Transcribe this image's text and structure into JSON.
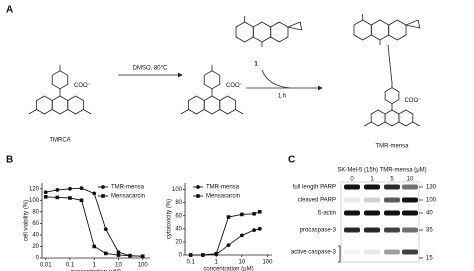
{
  "panel_a": {
    "label": "A",
    "compounds": [
      "TMRCA",
      "1",
      "TMR-mensa"
    ],
    "conditions": [
      "DMSO, 80°C",
      "1 h"
    ],
    "atom_labels": [
      "COO⁻",
      "COO⁻",
      "COO⁻"
    ]
  },
  "panel_b": {
    "label": "B"
  },
  "chart_data": [
    {
      "type": "line",
      "xscale": "log",
      "xlabel": "concentration (μM)",
      "ylabel": "cell viability (%)",
      "x": [
        0.01,
        0.03,
        0.1,
        0.3,
        1,
        3,
        10,
        30,
        100
      ],
      "series": [
        {
          "name": "TMR-mensa",
          "color": "#111111",
          "marker": "circle",
          "values": [
            114,
            118,
            120,
            121,
            112,
            50,
            10,
            4,
            3
          ]
        },
        {
          "name": "Mensacarcin",
          "color": "#111111",
          "marker": "square",
          "values": [
            106,
            105,
            104,
            100,
            20,
            8,
            5,
            4,
            3
          ]
        }
      ],
      "xlim": [
        0.007,
        200
      ],
      "xticks": [
        0.01,
        0.1,
        1,
        10,
        100
      ],
      "ylim": [
        0,
        130
      ],
      "yticks": [
        0,
        20,
        40,
        60,
        80,
        100,
        120
      ],
      "legend": "top-right"
    },
    {
      "type": "line",
      "xscale": "log",
      "xlabel": "concentration (μM)",
      "ylabel": "cytotoxicity (%)",
      "x": [
        0.1,
        0.3,
        1,
        3,
        10,
        30,
        50
      ],
      "series": [
        {
          "name": "TMR-mensa",
          "color": "#111111",
          "marker": "circle",
          "values": [
            0,
            0,
            1,
            15,
            30,
            38,
            40
          ]
        },
        {
          "name": "Mensacarcin",
          "color": "#111111",
          "marker": "square",
          "values": [
            0,
            0,
            2,
            58,
            62,
            63,
            66
          ]
        }
      ],
      "xlim": [
        0.06,
        150
      ],
      "xticks": [
        0.1,
        1,
        10,
        100
      ],
      "ylim": [
        0,
        110
      ],
      "yticks": [
        0,
        20,
        40,
        60,
        80,
        100
      ],
      "legend": "top-left"
    }
  ],
  "panel_c": {
    "label": "C",
    "header": "SK-Mel-5 (15h) TMR-mensa (μM)",
    "lanes": [
      "0",
      "1",
      "5",
      "10"
    ],
    "rows": [
      "full length PARP",
      "cleaved PARP",
      "ß-actin",
      "procaspase-3",
      "active caspase-3"
    ],
    "markers": [
      "130",
      "100",
      "40",
      "35",
      "15"
    ]
  }
}
